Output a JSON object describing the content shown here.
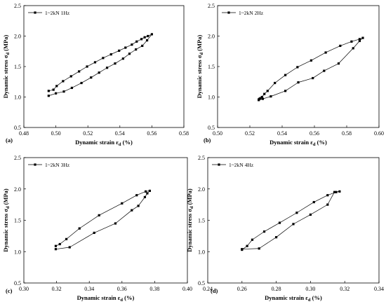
{
  "chart_data": [
    {
      "type": "line",
      "panel_label": "(a)",
      "xlabel": "Dynamic strain ε",
      "xlabel_sub": "d",
      "xlabel_unit": " (%)",
      "ylabel": "Dynamic stress σ",
      "ylabel_sub": "d",
      "ylabel_unit": " (MPa)",
      "xlim": [
        0.48,
        0.58
      ],
      "ylim": [
        0.5,
        2.5
      ],
      "xticks": [
        "0.48",
        "0.50",
        "0.52",
        "0.54",
        "0.56",
        "0.58"
      ],
      "yticks": [
        "0.5",
        "1.0",
        "1.5",
        "2.0",
        "2.5"
      ],
      "legend_position": "top-left",
      "grid": false,
      "series": [
        {
          "name": "1~2kN 1Hz",
          "x": [
            0.4955,
            0.4985,
            0.5005,
            0.5045,
            0.5095,
            0.5145,
            0.5195,
            0.5245,
            0.5295,
            0.5345,
            0.5395,
            0.5435,
            0.5475,
            0.5505,
            0.5535,
            0.5555,
            0.5575,
            0.56,
            0.557,
            0.554,
            0.55,
            0.546,
            0.542,
            0.537,
            0.532,
            0.527,
            0.522,
            0.516,
            0.51,
            0.505,
            0.5,
            0.4955
          ],
          "y": [
            1.1,
            1.12,
            1.18,
            1.26,
            1.34,
            1.42,
            1.5,
            1.57,
            1.64,
            1.7,
            1.76,
            1.81,
            1.86,
            1.91,
            1.95,
            1.98,
            2.0,
            2.03,
            1.93,
            1.84,
            1.78,
            1.71,
            1.63,
            1.55,
            1.48,
            1.4,
            1.32,
            1.23,
            1.15,
            1.09,
            1.06,
            1.02
          ]
        }
      ]
    },
    {
      "type": "line",
      "panel_label": "(b)",
      "xlabel": "Dynamic strain ε",
      "xlabel_sub": "d",
      "xlabel_unit": " (%)",
      "ylabel": "Dynamic stress σ",
      "ylabel_sub": "d",
      "ylabel_unit": " (MPa)",
      "xlim": [
        0.5,
        0.6
      ],
      "ylim": [
        0.5,
        2.5
      ],
      "xticks": [
        "0.50",
        "0.52",
        "0.54",
        "0.56",
        "0.58",
        "0.60"
      ],
      "yticks": [
        "0.5",
        "1.0",
        "1.5",
        "2.0",
        "2.5"
      ],
      "legend_position": "top-left",
      "grid": false,
      "series": [
        {
          "name": "1~2kN 2Hz",
          "x": [
            0.5255,
            0.526,
            0.5265,
            0.5275,
            0.529,
            0.531,
            0.5355,
            0.542,
            0.5495,
            0.558,
            0.567,
            0.576,
            0.583,
            0.588,
            0.59,
            0.588,
            0.584,
            0.575,
            0.566,
            0.559,
            0.55,
            0.542,
            0.533,
            0.528,
            0.5255
          ],
          "y": [
            0.96,
            0.97,
            0.98,
            1.0,
            1.05,
            1.1,
            1.23,
            1.36,
            1.49,
            1.6,
            1.73,
            1.84,
            1.91,
            1.95,
            1.97,
            1.92,
            1.8,
            1.55,
            1.43,
            1.31,
            1.24,
            1.1,
            1.01,
            0.97,
            0.95
          ]
        }
      ]
    },
    {
      "type": "line",
      "panel_label": "(c)",
      "xlabel": "Dynamic strain ε",
      "xlabel_sub": "d",
      "xlabel_unit": " (%)",
      "ylabel": "Dynamic stress σ",
      "ylabel_sub": "d",
      "ylabel_unit": " (MPa)",
      "xlim": [
        0.3,
        0.4
      ],
      "ylim": [
        0.5,
        2.5
      ],
      "xticks": [
        "0.30",
        "0.32",
        "0.34",
        "0.36",
        "0.38",
        "0.40"
      ],
      "yticks": [
        "0.5",
        "1.0",
        "1.5",
        "2.0",
        "2.5"
      ],
      "legend_position": "top-left",
      "grid": false,
      "series": [
        {
          "name": "1~2kN 3Hz",
          "x": [
            0.3195,
            0.322,
            0.326,
            0.334,
            0.346,
            0.36,
            0.369,
            0.3745,
            0.377,
            0.3755,
            0.374,
            0.37,
            0.366,
            0.356,
            0.343,
            0.328,
            0.3195
          ],
          "y": [
            1.09,
            1.12,
            1.2,
            1.37,
            1.58,
            1.77,
            1.9,
            1.96,
            1.97,
            1.93,
            1.87,
            1.73,
            1.66,
            1.45,
            1.3,
            1.07,
            1.04
          ]
        }
      ]
    },
    {
      "type": "line",
      "panel_label": "(d)",
      "xlabel": "Dynamic strain ε",
      "xlabel_sub": "d",
      "xlabel_unit": " (%)",
      "ylabel": "Dynamic stress σ",
      "ylabel_sub": "d",
      "ylabel_unit": " (MPa)",
      "xlim": [
        0.24,
        0.34
      ],
      "ylim": [
        0.5,
        2.5
      ],
      "xticks": [
        "0.24",
        "0.26",
        "0.28",
        "0.30",
        "0.32",
        "0.34"
      ],
      "yticks": [
        "0.5",
        "1.0",
        "1.5",
        "2.0",
        "2.5"
      ],
      "legend_position": "top-left",
      "grid": false,
      "series": [
        {
          "name": "1~2kN 4Hz",
          "x": [
            0.26,
            0.263,
            0.266,
            0.273,
            0.282,
            0.292,
            0.302,
            0.31,
            0.315,
            0.317,
            0.314,
            0.31,
            0.3,
            0.29,
            0.28,
            0.27,
            0.26
          ],
          "y": [
            1.03,
            1.09,
            1.19,
            1.32,
            1.46,
            1.62,
            1.79,
            1.9,
            1.95,
            1.96,
            1.95,
            1.75,
            1.59,
            1.44,
            1.23,
            1.05,
            1.04
          ]
        }
      ]
    }
  ]
}
